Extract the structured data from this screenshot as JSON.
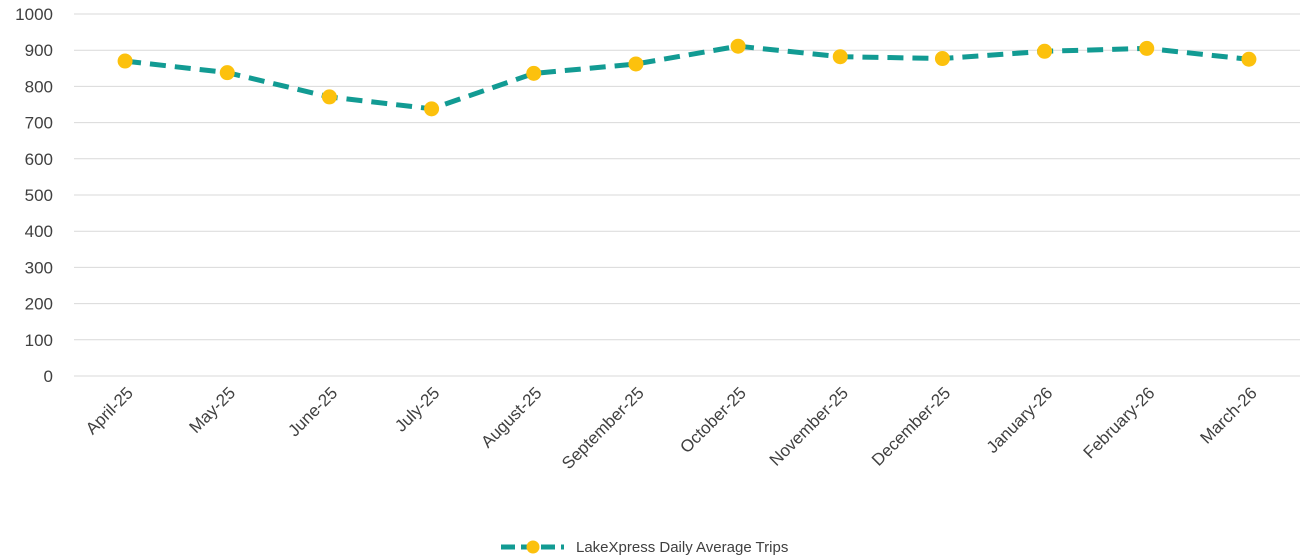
{
  "chart_data": {
    "type": "line",
    "title": "",
    "xlabel": "",
    "ylabel": "",
    "categories": [
      "April-25",
      "May-25",
      "June-25",
      "July-25",
      "August-25",
      "September-25",
      "October-25",
      "November-25",
      "December-25",
      "January-26",
      "February-26",
      "March-26"
    ],
    "series": [
      {
        "name": "LakeXpress Daily Average Trips",
        "values": [
          870,
          838,
          771,
          738,
          836,
          862,
          911,
          882,
          877,
          897,
          905,
          875
        ],
        "line_color": "#129b93",
        "marker_color": "#fcc10d",
        "line_style": "dashed"
      }
    ],
    "ylim": [
      0,
      1000
    ],
    "yticks": [
      0,
      100,
      200,
      300,
      400,
      500,
      600,
      700,
      800,
      900,
      1000
    ],
    "grid": true,
    "legend_position": "bottom"
  }
}
